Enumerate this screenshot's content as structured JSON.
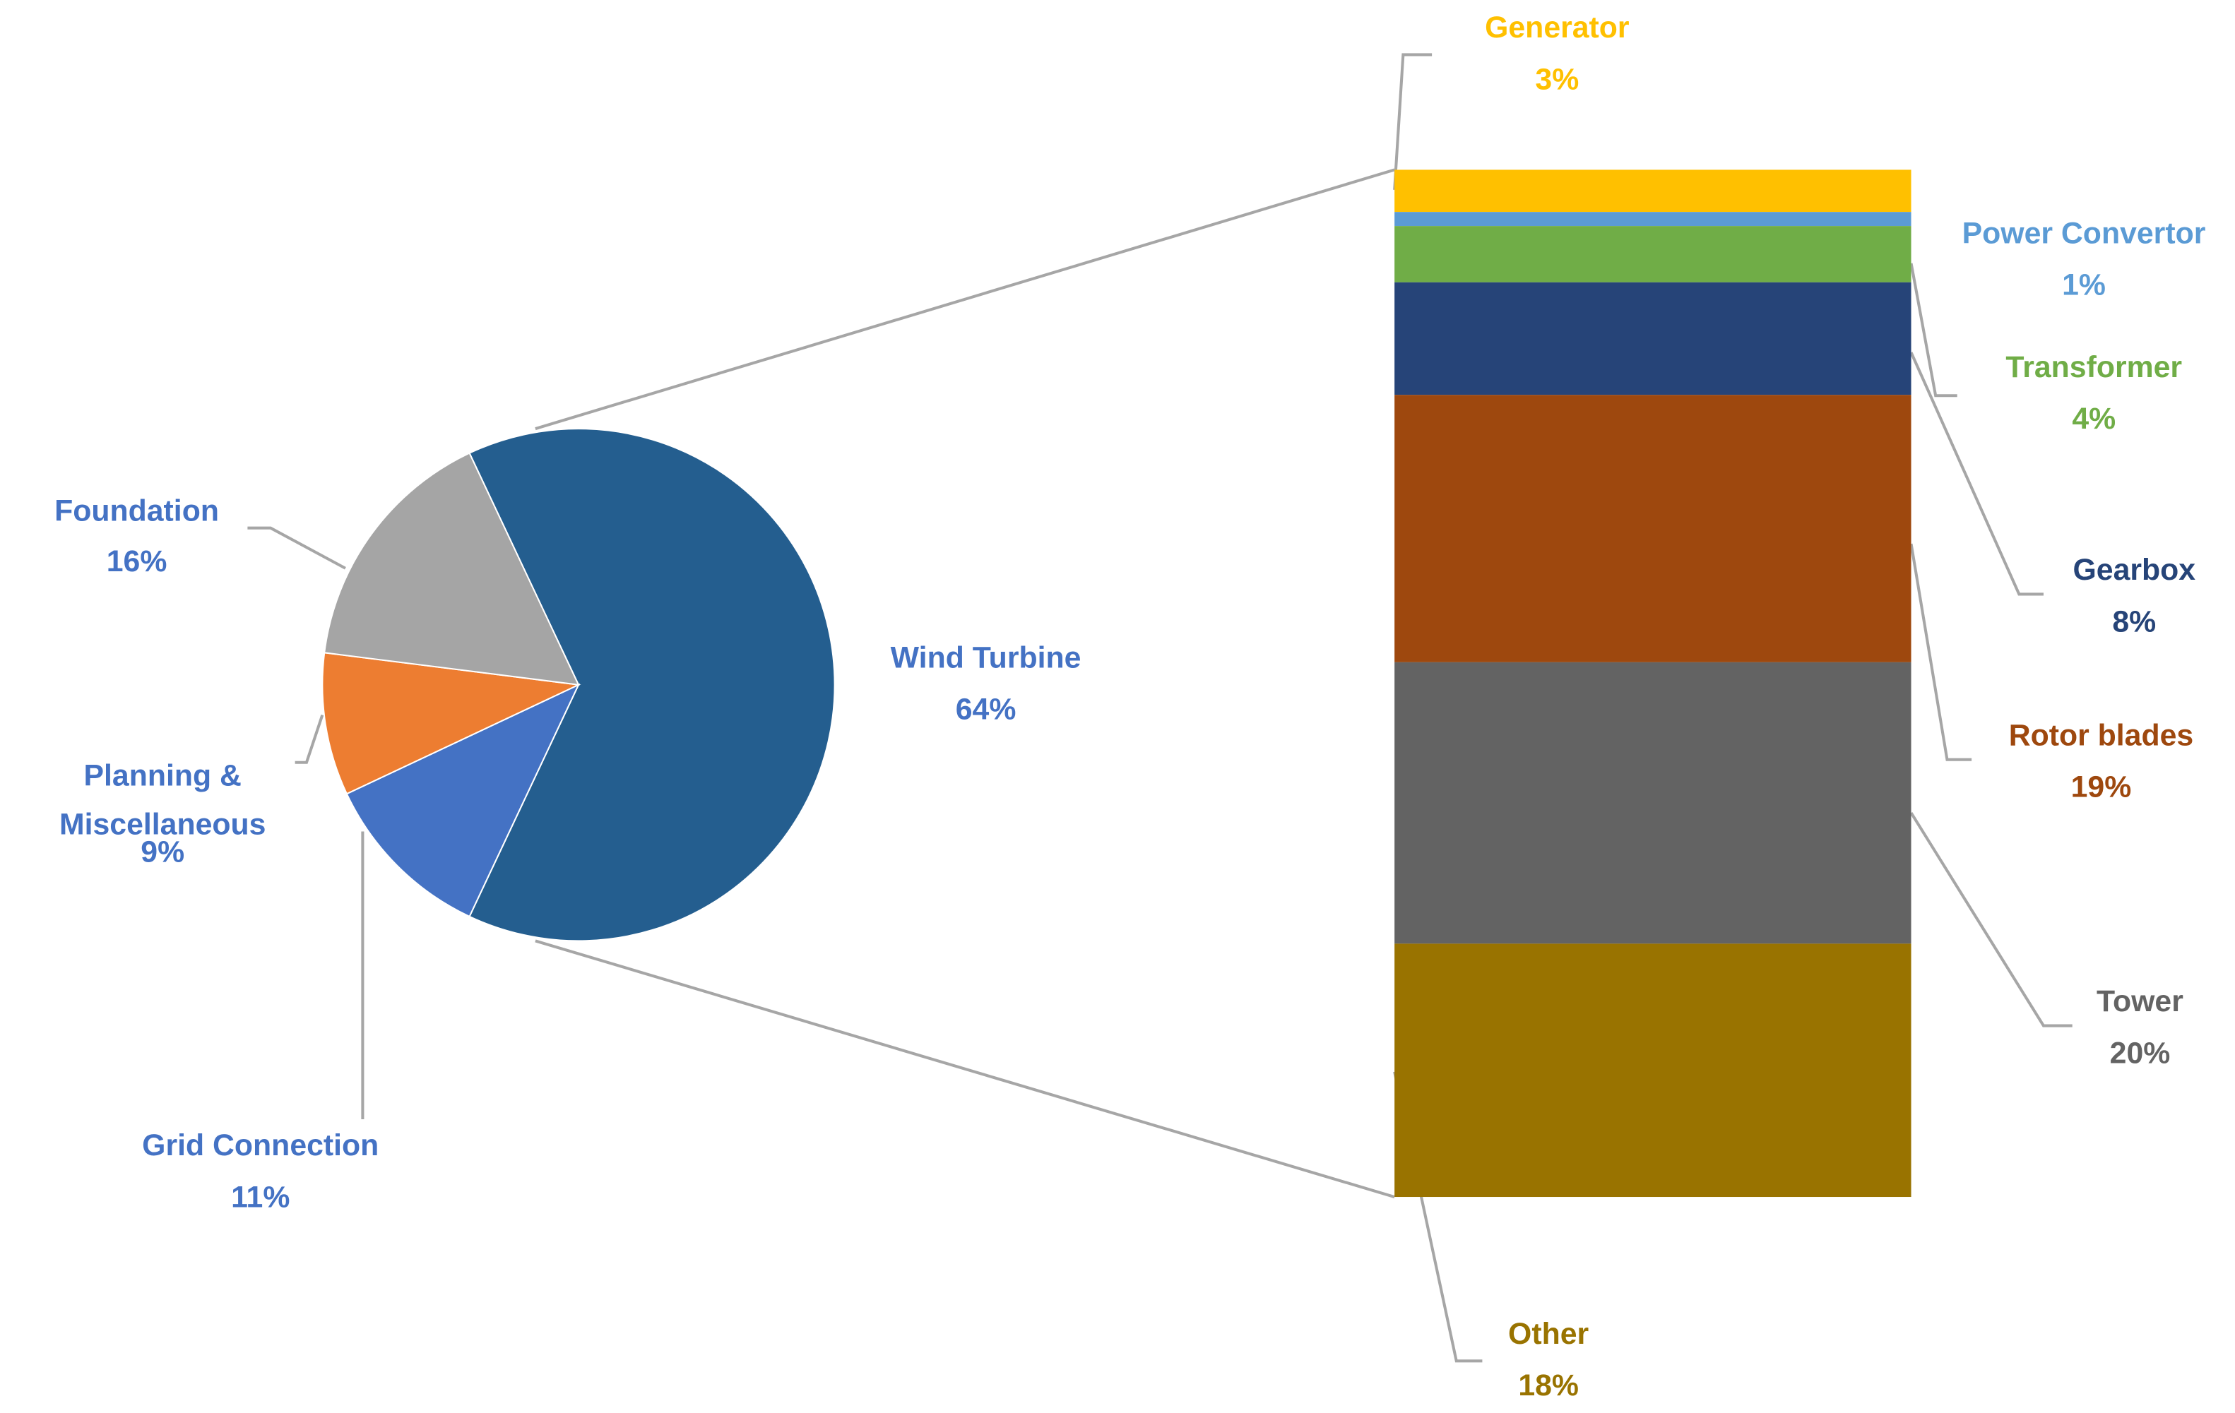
{
  "chart_data": [
    {
      "type": "pie",
      "categories": [
        "Wind Turbine",
        "Grid Connection",
        "Planning & Miscellaneous",
        "Foundation"
      ],
      "values": [
        64,
        11,
        9,
        16
      ],
      "value_labels": [
        "64%",
        "11%",
        "9%",
        "16%"
      ],
      "colors": [
        "#245e8f",
        "#4472c4",
        "#ed7d31",
        "#a5a5a5"
      ],
      "label_color": "#4472c4"
    },
    {
      "type": "stacked-bar",
      "categories": [
        "Generator",
        "Power Convertor",
        "Transformer",
        "Gearbox",
        "Rotor blades",
        "Tower",
        "Other"
      ],
      "values": [
        3,
        1,
        4,
        8,
        19,
        20,
        18
      ],
      "value_labels": [
        "3%",
        "1%",
        "4%",
        "8%",
        "19%",
        "20%",
        "18%"
      ],
      "colors": [
        "#ffc000",
        "#5b9bd5",
        "#70ad47",
        "#264478",
        "#9e480e",
        "#636363",
        "#997300"
      ]
    }
  ]
}
